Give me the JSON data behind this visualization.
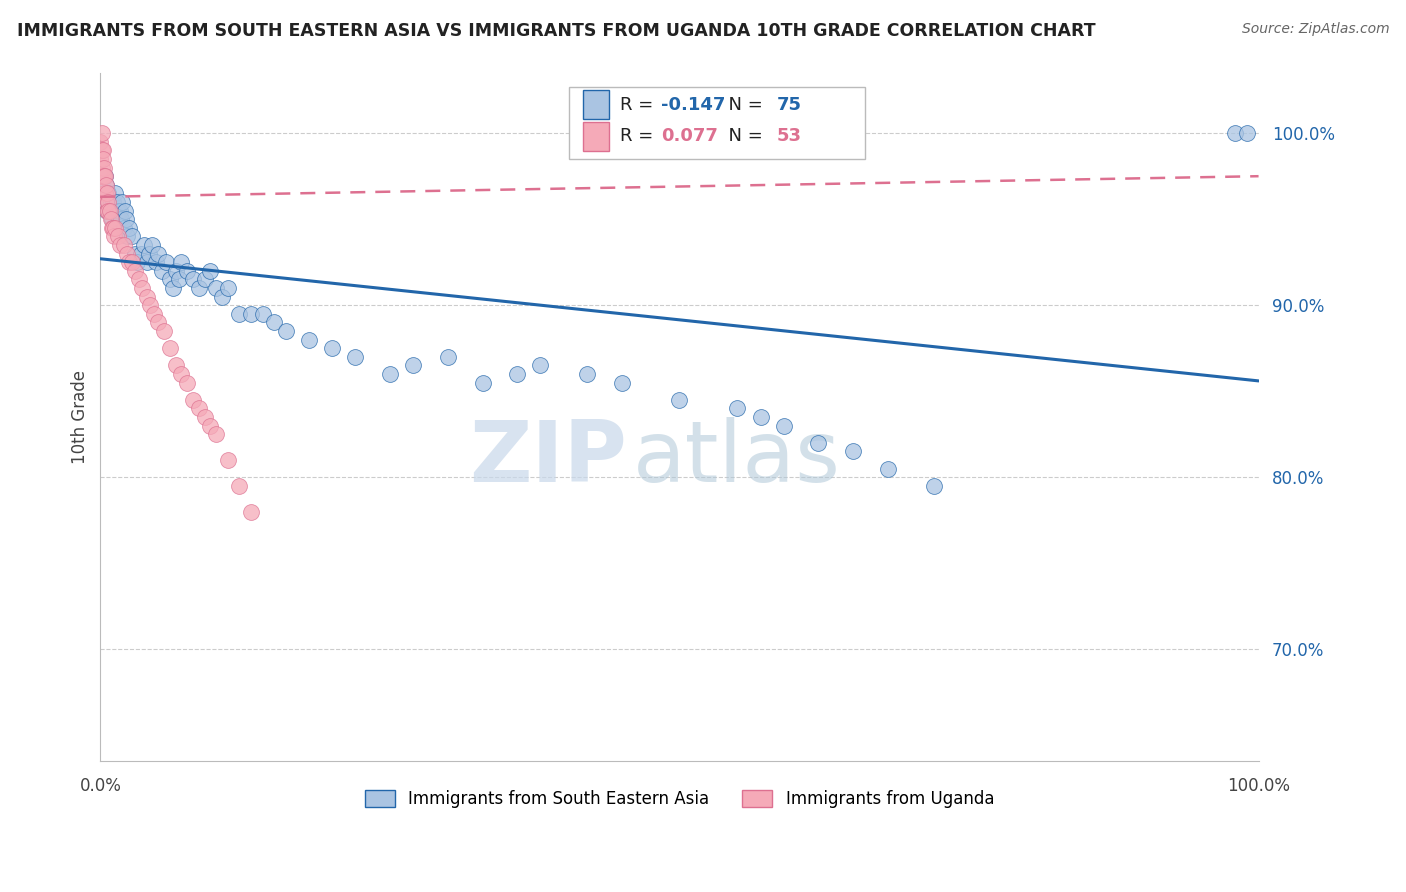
{
  "title": "IMMIGRANTS FROM SOUTH EASTERN ASIA VS IMMIGRANTS FROM UGANDA 10TH GRADE CORRELATION CHART",
  "source": "Source: ZipAtlas.com",
  "ylabel": "10th Grade",
  "right_ytick_labels": [
    "100.0%",
    "90.0%",
    "80.0%",
    "70.0%"
  ],
  "right_ytick_values": [
    1.0,
    0.9,
    0.8,
    0.7
  ],
  "xlim": [
    0.0,
    1.0
  ],
  "ylim": [
    0.635,
    1.035
  ],
  "legend_r_blue": "-0.147",
  "legend_n_blue": "75",
  "legend_r_pink": "0.077",
  "legend_n_pink": "53",
  "legend_label_blue": "Immigrants from South Eastern Asia",
  "legend_label_pink": "Immigrants from Uganda",
  "watermark_zip": "ZIP",
  "watermark_atlas": "atlas",
  "blue_color": "#aac4e2",
  "pink_color": "#f5aab8",
  "trend_blue_color": "#2266aa",
  "trend_pink_color": "#dd7090",
  "blue_trend_start_y": 0.927,
  "blue_trend_end_y": 0.856,
  "pink_trend_start_y": 0.963,
  "pink_trend_end_y": 0.975,
  "blue_x": [
    0.003,
    0.004,
    0.005,
    0.005,
    0.006,
    0.007,
    0.007,
    0.008,
    0.009,
    0.01,
    0.011,
    0.012,
    0.013,
    0.014,
    0.015,
    0.016,
    0.017,
    0.018,
    0.019,
    0.02,
    0.021,
    0.022,
    0.023,
    0.025,
    0.027,
    0.03,
    0.032,
    0.035,
    0.038,
    0.04,
    0.042,
    0.045,
    0.048,
    0.05,
    0.053,
    0.057,
    0.06,
    0.063,
    0.065,
    0.068,
    0.07,
    0.075,
    0.08,
    0.085,
    0.09,
    0.095,
    0.1,
    0.105,
    0.11,
    0.12,
    0.13,
    0.14,
    0.15,
    0.16,
    0.18,
    0.2,
    0.22,
    0.25,
    0.27,
    0.3,
    0.33,
    0.36,
    0.38,
    0.42,
    0.45,
    0.5,
    0.55,
    0.57,
    0.59,
    0.62,
    0.65,
    0.68,
    0.72,
    0.98,
    0.99
  ],
  "blue_y": [
    0.965,
    0.975,
    0.96,
    0.97,
    0.955,
    0.965,
    0.96,
    0.955,
    0.96,
    0.95,
    0.96,
    0.955,
    0.965,
    0.96,
    0.955,
    0.95,
    0.955,
    0.95,
    0.96,
    0.945,
    0.955,
    0.95,
    0.94,
    0.945,
    0.94,
    0.93,
    0.925,
    0.93,
    0.935,
    0.925,
    0.93,
    0.935,
    0.925,
    0.93,
    0.92,
    0.925,
    0.915,
    0.91,
    0.92,
    0.915,
    0.925,
    0.92,
    0.915,
    0.91,
    0.915,
    0.92,
    0.91,
    0.905,
    0.91,
    0.895,
    0.895,
    0.895,
    0.89,
    0.885,
    0.88,
    0.875,
    0.87,
    0.86,
    0.865,
    0.87,
    0.855,
    0.86,
    0.865,
    0.86,
    0.855,
    0.845,
    0.84,
    0.835,
    0.83,
    0.82,
    0.815,
    0.805,
    0.795,
    1.0,
    1.0
  ],
  "pink_x": [
    0.0,
    0.0,
    0.0,
    0.001,
    0.001,
    0.001,
    0.001,
    0.002,
    0.002,
    0.002,
    0.003,
    0.003,
    0.003,
    0.004,
    0.004,
    0.005,
    0.005,
    0.006,
    0.006,
    0.007,
    0.007,
    0.008,
    0.009,
    0.01,
    0.011,
    0.012,
    0.013,
    0.015,
    0.017,
    0.02,
    0.023,
    0.025,
    0.027,
    0.03,
    0.033,
    0.036,
    0.04,
    0.043,
    0.046,
    0.05,
    0.055,
    0.06,
    0.065,
    0.07,
    0.075,
    0.08,
    0.085,
    0.09,
    0.095,
    0.1,
    0.11,
    0.12,
    0.13
  ],
  "pink_y": [
    0.995,
    0.985,
    0.975,
    1.0,
    0.99,
    0.98,
    0.975,
    0.99,
    0.985,
    0.975,
    0.98,
    0.975,
    0.965,
    0.975,
    0.965,
    0.97,
    0.96,
    0.965,
    0.955,
    0.96,
    0.955,
    0.955,
    0.95,
    0.945,
    0.945,
    0.94,
    0.945,
    0.94,
    0.935,
    0.935,
    0.93,
    0.925,
    0.925,
    0.92,
    0.915,
    0.91,
    0.905,
    0.9,
    0.895,
    0.89,
    0.885,
    0.875,
    0.865,
    0.86,
    0.855,
    0.845,
    0.84,
    0.835,
    0.83,
    0.825,
    0.81,
    0.795,
    0.78
  ]
}
